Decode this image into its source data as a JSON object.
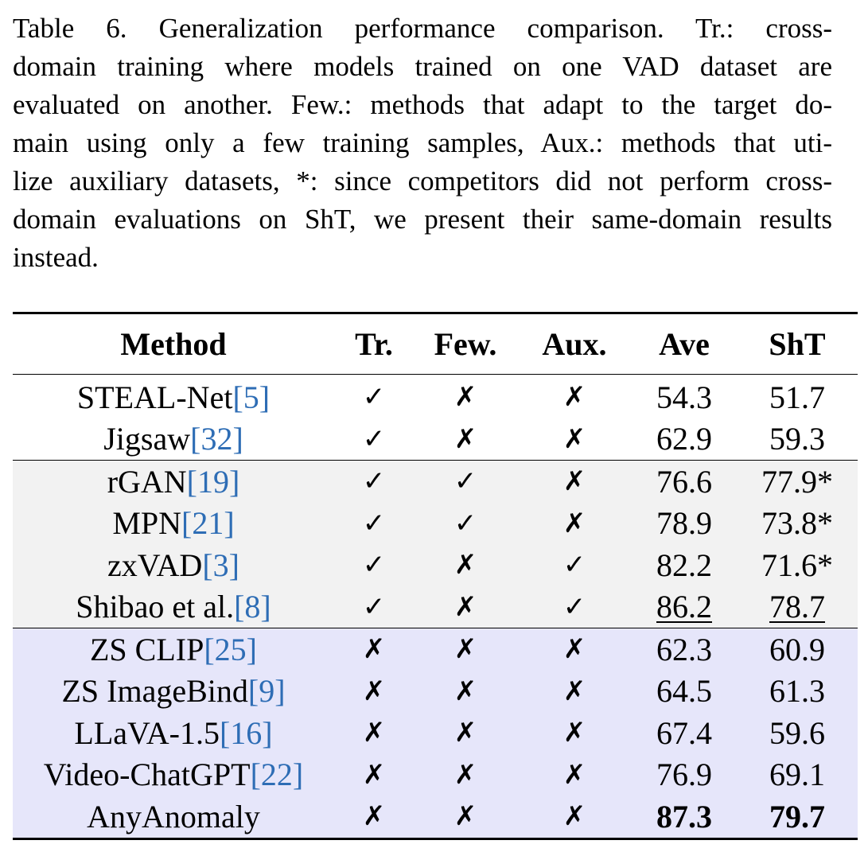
{
  "caption": {
    "lines": [
      "Table 6.  Generalization performance comparison.  Tr.: cross-",
      "domain training where models trained on one VAD dataset are",
      "evaluated on another.  Few.: methods that adapt to the target do-",
      "main using only a few training samples, Aux.: methods that uti-",
      "lize auxiliary datasets, *: since competitors did not perform cross-",
      "domain evaluations on ShT, we present their same-domain results",
      "instead."
    ]
  },
  "table": {
    "headers": {
      "method": "Method",
      "tr": "Tr.",
      "few": "Few.",
      "aux": "Aux.",
      "ave": "Ave",
      "sht": "ShT"
    },
    "rows": [
      {
        "name": "STEAL-Net",
        "cite": "[5]",
        "tr": "✓",
        "few": "✗",
        "aux": "✗",
        "ave": "54.3",
        "sht": "51.7"
      },
      {
        "name": "Jigsaw",
        "cite": "[32]",
        "tr": "✓",
        "few": "✗",
        "aux": "✗",
        "ave": "62.9",
        "sht": "59.3"
      },
      {
        "name": "rGAN",
        "cite": "[19]",
        "tr": "✓",
        "few": "✓",
        "aux": "✗",
        "ave": "76.6",
        "sht": "77.9*"
      },
      {
        "name": "MPN",
        "cite": "[21]",
        "tr": "✓",
        "few": "✓",
        "aux": "✗",
        "ave": "78.9",
        "sht": "73.8*"
      },
      {
        "name": "zxVAD",
        "cite": "[3]",
        "tr": "✓",
        "few": "✗",
        "aux": "✓",
        "ave": "82.2",
        "sht": "71.6*"
      },
      {
        "name": "Shibao et al.",
        "cite": "[8]",
        "tr": "✓",
        "few": "✗",
        "aux": "✓",
        "ave": "86.2",
        "sht": "78.7"
      },
      {
        "name": "ZS CLIP",
        "cite": "[25]",
        "tr": "✗",
        "few": "✗",
        "aux": "✗",
        "ave": "62.3",
        "sht": "60.9"
      },
      {
        "name": "ZS ImageBind",
        "cite": "[9]",
        "tr": "✗",
        "few": "✗",
        "aux": "✗",
        "ave": "64.5",
        "sht": "61.3"
      },
      {
        "name": "LLaVA-1.5",
        "cite": "[16]",
        "tr": "✗",
        "few": "✗",
        "aux": "✗",
        "ave": "67.4",
        "sht": "59.6"
      },
      {
        "name": "Video-ChatGPT",
        "cite": "[22]",
        "tr": "✗",
        "few": "✗",
        "aux": "✗",
        "ave": "76.9",
        "sht": "69.1"
      },
      {
        "name": "AnyAnomaly",
        "cite": "",
        "tr": "✗",
        "few": "✗",
        "aux": "✗",
        "ave": "87.3",
        "sht": "79.7"
      }
    ]
  }
}
